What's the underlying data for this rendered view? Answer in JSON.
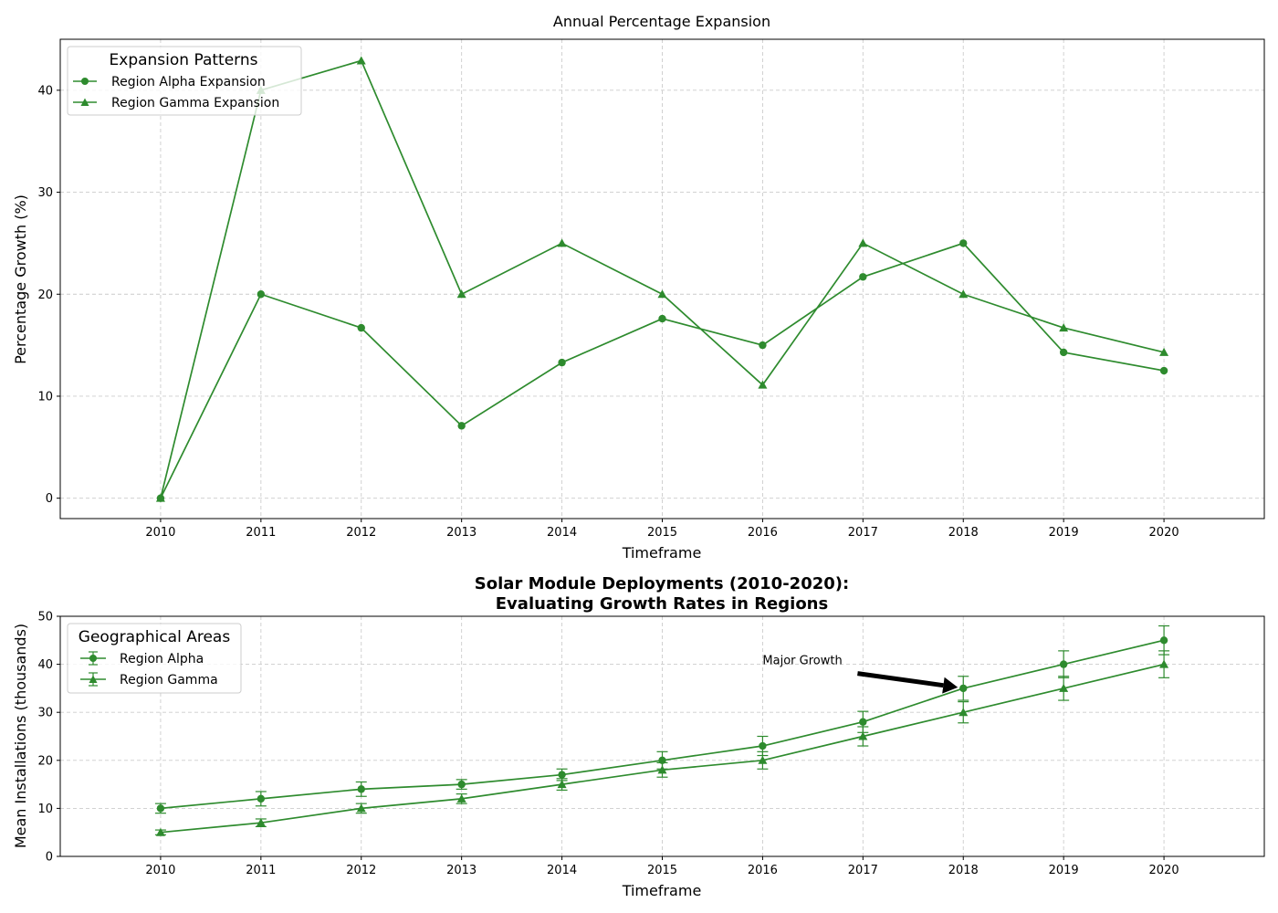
{
  "colors": {
    "series": "#2e8b2e",
    "grid": "#cccccc"
  },
  "chart_data": [
    {
      "type": "line",
      "title": "Annual Percentage Expansion",
      "xlabel": "Timeframe",
      "ylabel": "Percentage Growth (%)",
      "x": [
        2010,
        2011,
        2012,
        2013,
        2014,
        2015,
        2016,
        2017,
        2018,
        2019,
        2020
      ],
      "xlim": [
        2009,
        2021
      ],
      "ylim": [
        -2,
        45
      ],
      "yticks": [
        0,
        10,
        20,
        30,
        40
      ],
      "grid": true,
      "legend": {
        "title": "Expansion Patterns",
        "placement": "top-left"
      },
      "series": [
        {
          "name": "Region Alpha Expansion",
          "marker": "circle",
          "values": [
            0,
            20,
            16.7,
            7.1,
            13.3,
            17.6,
            15.0,
            21.7,
            25.0,
            14.3,
            12.5
          ]
        },
        {
          "name": "Region Gamma Expansion",
          "marker": "triangle",
          "values": [
            0,
            40,
            42.9,
            20,
            25,
            20,
            11.1,
            25,
            20,
            16.7,
            14.3
          ]
        }
      ]
    },
    {
      "type": "line",
      "title": "Solar Module Deployments (2010-2020):\nEvaluating Growth Rates in Regions",
      "title_lines": [
        "Solar Module Deployments (2010-2020):",
        "Evaluating Growth Rates in Regions"
      ],
      "xlabel": "Timeframe",
      "ylabel": "Mean Installations (thousands)",
      "x": [
        2010,
        2011,
        2012,
        2013,
        2014,
        2015,
        2016,
        2017,
        2018,
        2019,
        2020
      ],
      "xlim": [
        2009,
        2021
      ],
      "ylim": [
        0,
        50
      ],
      "yticks": [
        0,
        10,
        20,
        30,
        40,
        50
      ],
      "grid": true,
      "legend": {
        "title": "Geographical Areas",
        "placement": "top-left"
      },
      "series": [
        {
          "name": "Region Alpha",
          "marker": "circle",
          "values": [
            10,
            12,
            14,
            15,
            17,
            20,
            23,
            28,
            35,
            40,
            45
          ],
          "errors": [
            1,
            1.5,
            1.5,
            1,
            1.2,
            1.8,
            2,
            2.2,
            2.5,
            2.8,
            3
          ]
        },
        {
          "name": "Region Gamma",
          "marker": "triangle",
          "values": [
            5,
            7,
            10,
            12,
            15,
            18,
            20,
            25,
            30,
            35,
            40
          ],
          "errors": [
            0.5,
            0.8,
            1,
            1,
            1.2,
            1.5,
            1.8,
            2,
            2.2,
            2.5,
            2.8
          ]
        }
      ],
      "annotations": [
        {
          "text": "Major Growth",
          "text_x": 2016,
          "text_y": 40,
          "arrow_to_x": 2018,
          "arrow_to_y": 35
        }
      ]
    }
  ]
}
